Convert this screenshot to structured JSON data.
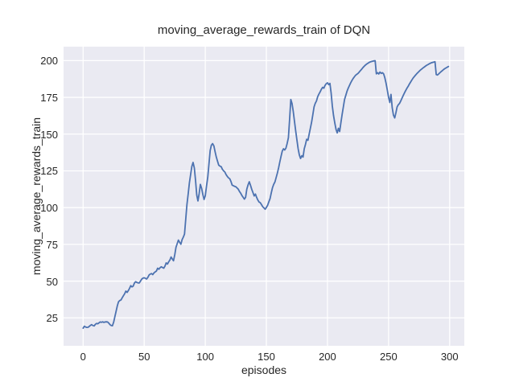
{
  "colors": {
    "figure_background": "#ffffff",
    "plot_background": "#eaeaf2",
    "gridline": "#ffffff",
    "text": "#262626",
    "line": "#4c72b0"
  },
  "chart_data": {
    "type": "line",
    "title": "moving_average_rewards_train of DQN",
    "xlabel": "episodes",
    "ylabel": "moving_average_rewards_train",
    "grid": true,
    "legend_position": "none",
    "x_ticks": [
      0,
      50,
      100,
      150,
      200,
      250,
      300
    ],
    "y_ticks": [
      25,
      50,
      75,
      100,
      125,
      150,
      175,
      200
    ],
    "xlim": [
      -16,
      312
    ],
    "ylim": [
      6,
      209.5
    ],
    "series": [
      {
        "name": "moving_average_rewards_train",
        "points": [
          [
            0,
            18.0
          ],
          [
            1,
            19.3
          ],
          [
            2,
            18.8
          ],
          [
            3,
            18.5
          ],
          [
            4,
            18.6
          ],
          [
            5,
            19.2
          ],
          [
            6,
            19.9
          ],
          [
            7,
            20.4
          ],
          [
            8,
            19.8
          ],
          [
            9,
            19.5
          ],
          [
            10,
            20.6
          ],
          [
            11,
            21.2
          ],
          [
            12,
            21.0
          ],
          [
            13,
            21.6
          ],
          [
            14,
            22.2
          ],
          [
            15,
            22.0
          ],
          [
            16,
            22.3
          ],
          [
            17,
            21.9
          ],
          [
            18,
            22.2
          ],
          [
            19,
            22.3
          ],
          [
            20,
            22.2
          ],
          [
            21,
            21.4
          ],
          [
            22,
            20.4
          ],
          [
            23,
            19.8
          ],
          [
            24,
            19.6
          ],
          [
            25,
            22.2
          ],
          [
            26,
            25.9
          ],
          [
            27,
            29.5
          ],
          [
            28,
            33.2
          ],
          [
            29,
            35.9
          ],
          [
            30,
            36.8
          ],
          [
            31,
            37.2
          ],
          [
            32,
            38.7
          ],
          [
            33,
            40.1
          ],
          [
            34,
            41.4
          ],
          [
            35,
            43.2
          ],
          [
            36,
            42.3
          ],
          [
            37,
            43.6
          ],
          [
            38,
            45.1
          ],
          [
            39,
            46.9
          ],
          [
            40,
            46.1
          ],
          [
            41,
            46.6
          ],
          [
            42,
            48.7
          ],
          [
            43,
            49.6
          ],
          [
            44,
            49.1
          ],
          [
            45,
            48.8
          ],
          [
            46,
            48.7
          ],
          [
            47,
            50.1
          ],
          [
            48,
            51.4
          ],
          [
            49,
            52.0
          ],
          [
            50,
            52.3
          ],
          [
            51,
            51.9
          ],
          [
            52,
            51.4
          ],
          [
            53,
            52.6
          ],
          [
            54,
            54.2
          ],
          [
            55,
            54.8
          ],
          [
            56,
            55.1
          ],
          [
            57,
            54.4
          ],
          [
            58,
            55.6
          ],
          [
            59,
            56.3
          ],
          [
            60,
            56.9
          ],
          [
            61,
            58.8
          ],
          [
            62,
            58.1
          ],
          [
            63,
            59.1
          ],
          [
            64,
            59.7
          ],
          [
            65,
            59.2
          ],
          [
            66,
            58.8
          ],
          [
            67,
            60.2
          ],
          [
            68,
            62.4
          ],
          [
            69,
            61.6
          ],
          [
            70,
            63.1
          ],
          [
            71,
            64.3
          ],
          [
            72,
            66.4
          ],
          [
            73,
            65.1
          ],
          [
            74,
            63.8
          ],
          [
            75,
            68.0
          ],
          [
            76,
            73.0
          ],
          [
            77,
            75.5
          ],
          [
            78,
            77.9
          ],
          [
            79,
            76.4
          ],
          [
            80,
            75.1
          ],
          [
            81,
            78.2
          ],
          [
            82,
            79.9
          ],
          [
            83,
            82.0
          ],
          [
            84,
            92.0
          ],
          [
            85,
            102.0
          ],
          [
            86,
            109.5
          ],
          [
            87,
            117.0
          ],
          [
            88,
            122.5
          ],
          [
            89,
            128.0
          ],
          [
            90,
            130.7
          ],
          [
            91,
            127.0
          ],
          [
            92,
            118.5
          ],
          [
            93,
            108.5
          ],
          [
            94,
            104.5
          ],
          [
            95,
            109.5
          ],
          [
            96,
            115.8
          ],
          [
            97,
            113.0
          ],
          [
            98,
            108.9
          ],
          [
            99,
            105.5
          ],
          [
            100,
            108.0
          ],
          [
            101,
            114.4
          ],
          [
            102,
            120.7
          ],
          [
            103,
            129.8
          ],
          [
            104,
            138.9
          ],
          [
            105,
            142.5
          ],
          [
            106,
            143.5
          ],
          [
            107,
            142.0
          ],
          [
            108,
            138.0
          ],
          [
            109,
            134.4
          ],
          [
            110,
            131.6
          ],
          [
            111,
            128.9
          ],
          [
            112,
            128.2
          ],
          [
            113,
            127.8
          ],
          [
            114,
            126.0
          ],
          [
            115,
            125.0
          ],
          [
            116,
            124.2
          ],
          [
            117,
            122.5
          ],
          [
            118,
            121.2
          ],
          [
            119,
            120.2
          ],
          [
            120,
            119.6
          ],
          [
            121,
            117.8
          ],
          [
            122,
            115.3
          ],
          [
            123,
            114.9
          ],
          [
            124,
            114.4
          ],
          [
            125,
            114.2
          ],
          [
            126,
            113.4
          ],
          [
            127,
            112.5
          ],
          [
            128,
            111.0
          ],
          [
            129,
            109.7
          ],
          [
            130,
            108.2
          ],
          [
            131,
            107.0
          ],
          [
            132,
            105.8
          ],
          [
            133,
            107.0
          ],
          [
            134,
            112.5
          ],
          [
            135,
            115.5
          ],
          [
            136,
            117.6
          ],
          [
            137,
            115.2
          ],
          [
            138,
            112.5
          ],
          [
            139,
            110.3
          ],
          [
            140,
            107.9
          ],
          [
            141,
            109.2
          ],
          [
            142,
            107.0
          ],
          [
            143,
            105.2
          ],
          [
            144,
            103.8
          ],
          [
            145,
            103.4
          ],
          [
            146,
            102.0
          ],
          [
            147,
            100.6
          ],
          [
            148,
            99.8
          ],
          [
            149,
            98.9
          ],
          [
            150,
            100.1
          ],
          [
            151,
            101.6
          ],
          [
            152,
            104.0
          ],
          [
            153,
            106.1
          ],
          [
            154,
            110.0
          ],
          [
            155,
            113.5
          ],
          [
            156,
            115.8
          ],
          [
            157,
            117.5
          ],
          [
            158,
            120.5
          ],
          [
            159,
            123.5
          ],
          [
            160,
            127.0
          ],
          [
            161,
            131.0
          ],
          [
            162,
            135.0
          ],
          [
            163,
            138.5
          ],
          [
            164,
            140.0
          ],
          [
            165,
            139.2
          ],
          [
            166,
            140.4
          ],
          [
            167,
            143.5
          ],
          [
            168,
            147.5
          ],
          [
            169,
            160.0
          ],
          [
            170,
            173.5
          ],
          [
            171,
            170.8
          ],
          [
            172,
            165.5
          ],
          [
            173,
            158.5
          ],
          [
            174,
            152.0
          ],
          [
            175,
            146.0
          ],
          [
            176,
            140.0
          ],
          [
            177,
            135.8
          ],
          [
            178,
            133.4
          ],
          [
            179,
            135.3
          ],
          [
            180,
            134.4
          ],
          [
            181,
            140.0
          ],
          [
            182,
            143.0
          ],
          [
            183,
            146.5
          ],
          [
            184,
            145.8
          ],
          [
            185,
            150.0
          ],
          [
            186,
            154.0
          ],
          [
            187,
            158.0
          ],
          [
            188,
            163.0
          ],
          [
            189,
            168.5
          ],
          [
            190,
            171.0
          ],
          [
            191,
            172.6
          ],
          [
            192,
            175.4
          ],
          [
            193,
            177.2
          ],
          [
            194,
            178.7
          ],
          [
            195,
            180.5
          ],
          [
            196,
            181.8
          ],
          [
            197,
            181.2
          ],
          [
            198,
            183.1
          ],
          [
            199,
            184.3
          ],
          [
            200,
            184.9
          ],
          [
            201,
            183.6
          ],
          [
            202,
            184.5
          ],
          [
            203,
            178.0
          ],
          [
            204,
            169.0
          ],
          [
            205,
            162.6
          ],
          [
            206,
            157.5
          ],
          [
            207,
            153.2
          ],
          [
            208,
            150.8
          ],
          [
            209,
            154.0
          ],
          [
            210,
            151.8
          ],
          [
            211,
            158.0
          ],
          [
            212,
            163.5
          ],
          [
            213,
            168.5
          ],
          [
            214,
            173.6
          ],
          [
            215,
            176.3
          ],
          [
            216,
            179.1
          ],
          [
            217,
            181.3
          ],
          [
            218,
            183.1
          ],
          [
            219,
            184.9
          ],
          [
            220,
            186.4
          ],
          [
            221,
            187.8
          ],
          [
            222,
            189.0
          ],
          [
            223,
            190.0
          ],
          [
            224,
            190.7
          ],
          [
            225,
            191.3
          ],
          [
            226,
            192.2
          ],
          [
            227,
            193.2
          ],
          [
            228,
            194.2
          ],
          [
            229,
            195.2
          ],
          [
            230,
            196.1
          ],
          [
            231,
            196.9
          ],
          [
            232,
            197.6
          ],
          [
            233,
            198.2
          ],
          [
            234,
            198.7
          ],
          [
            235,
            199.1
          ],
          [
            236,
            199.4
          ],
          [
            237,
            199.6
          ],
          [
            238,
            199.8
          ],
          [
            239,
            199.9
          ],
          [
            240,
            191.0
          ],
          [
            241,
            191.8
          ],
          [
            242,
            190.9
          ],
          [
            243,
            192.2
          ],
          [
            244,
            191.3
          ],
          [
            245,
            191.8
          ],
          [
            246,
            190.9
          ],
          [
            247,
            188.2
          ],
          [
            248,
            184.5
          ],
          [
            249,
            180.0
          ],
          [
            250,
            175.0
          ],
          [
            251,
            171.5
          ],
          [
            252,
            177.0
          ],
          [
            253,
            168.0
          ],
          [
            254,
            163.0
          ],
          [
            255,
            161.0
          ],
          [
            256,
            164.5
          ],
          [
            257,
            168.5
          ],
          [
            258,
            170.0
          ],
          [
            259,
            170.9
          ],
          [
            260,
            172.5
          ],
          [
            261,
            174.5
          ],
          [
            262,
            176.3
          ],
          [
            263,
            178.0
          ],
          [
            264,
            179.6
          ],
          [
            265,
            181.1
          ],
          [
            266,
            182.5
          ],
          [
            267,
            184.0
          ],
          [
            268,
            185.4
          ],
          [
            269,
            186.7
          ],
          [
            270,
            188.0
          ],
          [
            271,
            189.1
          ],
          [
            272,
            190.1
          ],
          [
            273,
            191.0
          ],
          [
            274,
            191.9
          ],
          [
            275,
            192.7
          ],
          [
            276,
            193.5
          ],
          [
            277,
            194.2
          ],
          [
            278,
            194.9
          ],
          [
            279,
            195.5
          ],
          [
            280,
            196.1
          ],
          [
            281,
            196.7
          ],
          [
            282,
            197.2
          ],
          [
            283,
            197.7
          ],
          [
            284,
            198.1
          ],
          [
            285,
            198.5
          ],
          [
            286,
            198.8
          ],
          [
            287,
            199.0
          ],
          [
            288,
            199.2
          ],
          [
            289,
            190.5
          ],
          [
            290,
            190.2
          ],
          [
            291,
            190.9
          ],
          [
            292,
            191.7
          ],
          [
            293,
            192.5
          ],
          [
            294,
            193.2
          ],
          [
            295,
            193.9
          ],
          [
            296,
            194.5
          ],
          [
            297,
            195.0
          ],
          [
            298,
            195.5
          ],
          [
            299,
            196.0
          ]
        ]
      }
    ]
  }
}
